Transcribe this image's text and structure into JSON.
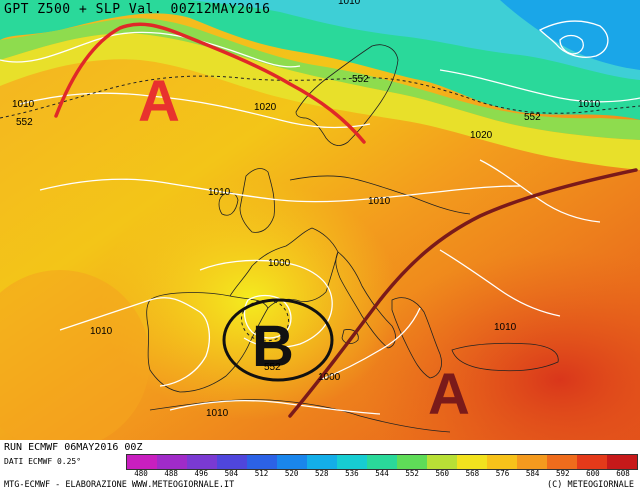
{
  "title": "GPT Z500 + SLP Val. 00Z12MAY2016",
  "run_info": "RUN ECMWF 06MAY2016 00Z",
  "data_info": "DATI ECMWF 0.25°",
  "credit_left": "MTG-ECMWF - ELABORAZIONE WWW.METEOGIORNALE.IT",
  "credit_right": "(C) METEOGIORNALE",
  "pressure_markers": [
    {
      "label": "A",
      "type": "anticyclone-atlantic",
      "color": "#e8322e"
    },
    {
      "label": "B",
      "type": "low-iberia",
      "color": "#111111"
    },
    {
      "label": "A",
      "type": "anticyclone-east",
      "color": "#7a1a1a"
    }
  ],
  "isobar_labels": [
    "1010",
    "1010",
    "1010",
    "1020",
    "1020",
    "1010",
    "1010",
    "1000",
    "1010",
    "1010",
    "1000",
    "1010"
  ],
  "geopotential_labels": [
    "552",
    "552",
    "552",
    "552"
  ],
  "legend": {
    "values": [
      "480",
      "488",
      "496",
      "504",
      "512",
      "520",
      "528",
      "536",
      "544",
      "552",
      "560",
      "568",
      "576",
      "584",
      "592",
      "600",
      "608"
    ],
    "colors": [
      "#c81fbf",
      "#a02bc8",
      "#7a3ad2",
      "#4f46dc",
      "#2c62e6",
      "#1a86ec",
      "#14aee8",
      "#17cdd2",
      "#2ad99a",
      "#5fdc58",
      "#b8e036",
      "#f2e21e",
      "#f7c21a",
      "#f49a1e",
      "#ef6c1c",
      "#e43a1a",
      "#c7191a"
    ]
  }
}
